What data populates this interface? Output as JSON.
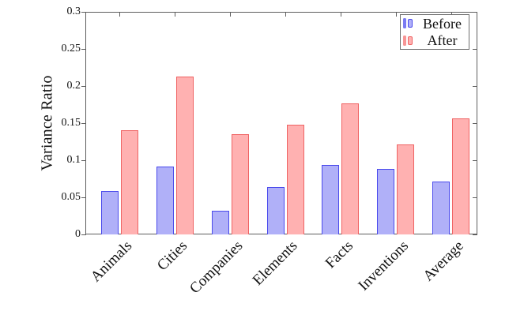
{
  "chart_data": {
    "type": "bar",
    "title": "",
    "xlabel": "",
    "ylabel": "Variance Ratio",
    "categories": [
      "Animals",
      "Cities",
      "Companies",
      "Elements",
      "Facts",
      "Inventions",
      "Average"
    ],
    "series": [
      {
        "name": "Before",
        "values": [
          0.058,
          0.092,
          0.032,
          0.064,
          0.094,
          0.088,
          0.071
        ],
        "fill": "#b0b0f8",
        "border": "#4a4aec",
        "legend_solid": "#7b7bf2"
      },
      {
        "name": "After",
        "values": [
          0.14,
          0.213,
          0.135,
          0.148,
          0.177,
          0.121,
          0.156
        ],
        "fill": "#ffb1b1",
        "border": "#ef6363",
        "legend_solid": "#f79595"
      }
    ],
    "ylim": [
      0,
      0.3
    ],
    "yticks": [
      0,
      0.05,
      0.1,
      0.15,
      0.2,
      0.25,
      0.3
    ],
    "ytick_labels": [
      "0",
      "0.05",
      "0.1",
      "0.15",
      "0.2",
      "0.25",
      "0.3"
    ],
    "legend_position": "top-right",
    "grid": "off",
    "axis_color": "#5e5e5e",
    "text_color": "#111111"
  }
}
